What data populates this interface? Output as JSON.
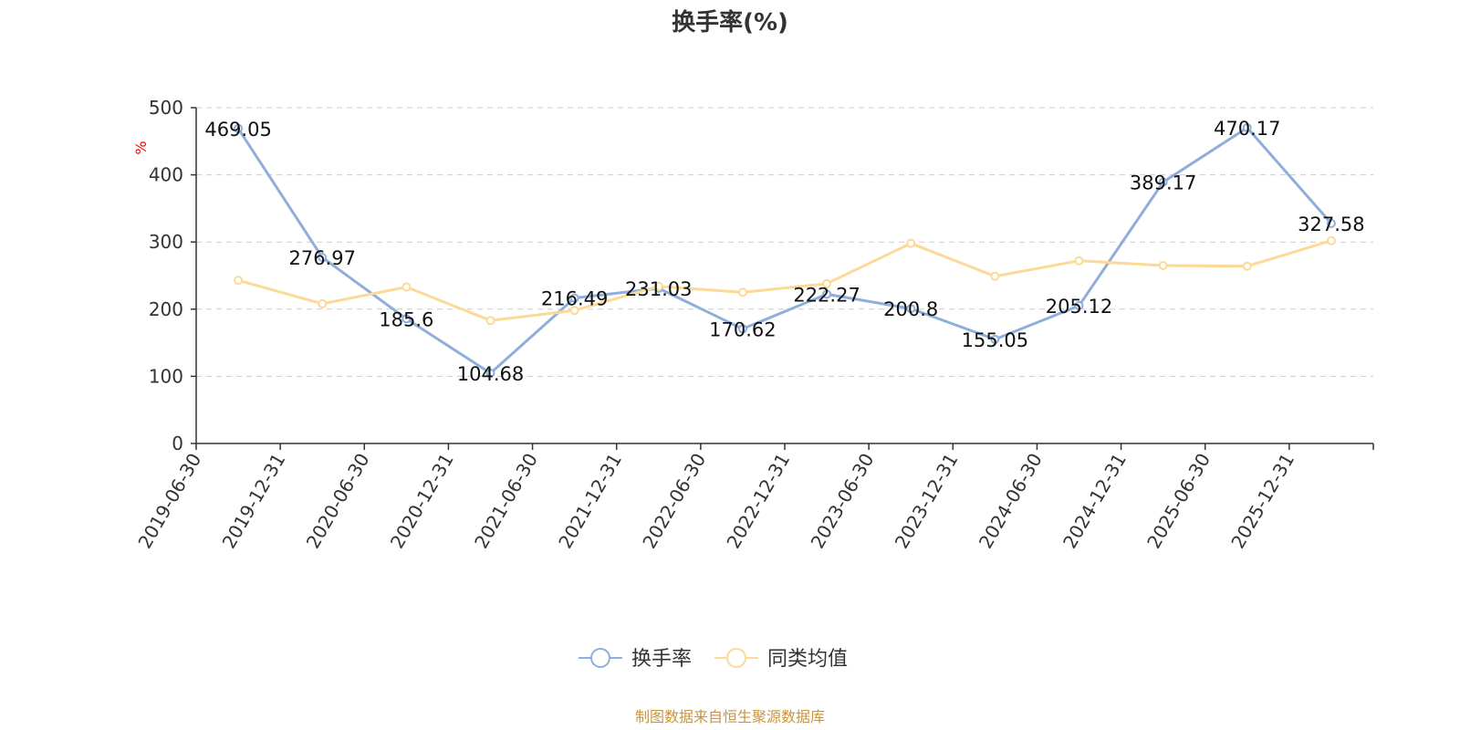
{
  "chart_data": {
    "type": "line",
    "title": "换手率(%)",
    "ylabel": "%",
    "xlabel": "",
    "ylim": [
      0,
      500
    ],
    "yticks": [
      0,
      100,
      200,
      300,
      400,
      500
    ],
    "grid": true,
    "legend_position": "bottom-center",
    "categories": [
      "2019-06-30",
      "2019-12-31",
      "2020-06-30",
      "2020-12-31",
      "2021-06-30",
      "2021-12-31",
      "2022-06-30",
      "2022-12-31",
      "2023-06-30",
      "2023-12-31",
      "2024-06-30",
      "2024-12-31",
      "2025-06-30",
      "2025-12-31"
    ],
    "series": [
      {
        "name": "换手率",
        "color": "#8eaedb",
        "show_labels": true,
        "labels": [
          "469.05",
          "276.97",
          "185.6",
          "104.68",
          "216.49",
          "231.03",
          "170.62",
          "222.27",
          "200.8",
          "155.05",
          "205.12",
          "389.17",
          "470.17",
          "327.58"
        ],
        "values": [
          469.05,
          276.97,
          185.6,
          104.68,
          216.49,
          231.03,
          170.62,
          222.27,
          200.8,
          155.05,
          205.12,
          389.17,
          470.17,
          327.58
        ]
      },
      {
        "name": "同类均值",
        "color": "#fcd996",
        "show_labels": false,
        "values": [
          243,
          208,
          233,
          183,
          198,
          234,
          225,
          238,
          298,
          249,
          272,
          265,
          264,
          302
        ]
      }
    ],
    "source": "制图数据来自恒生聚源数据库"
  }
}
